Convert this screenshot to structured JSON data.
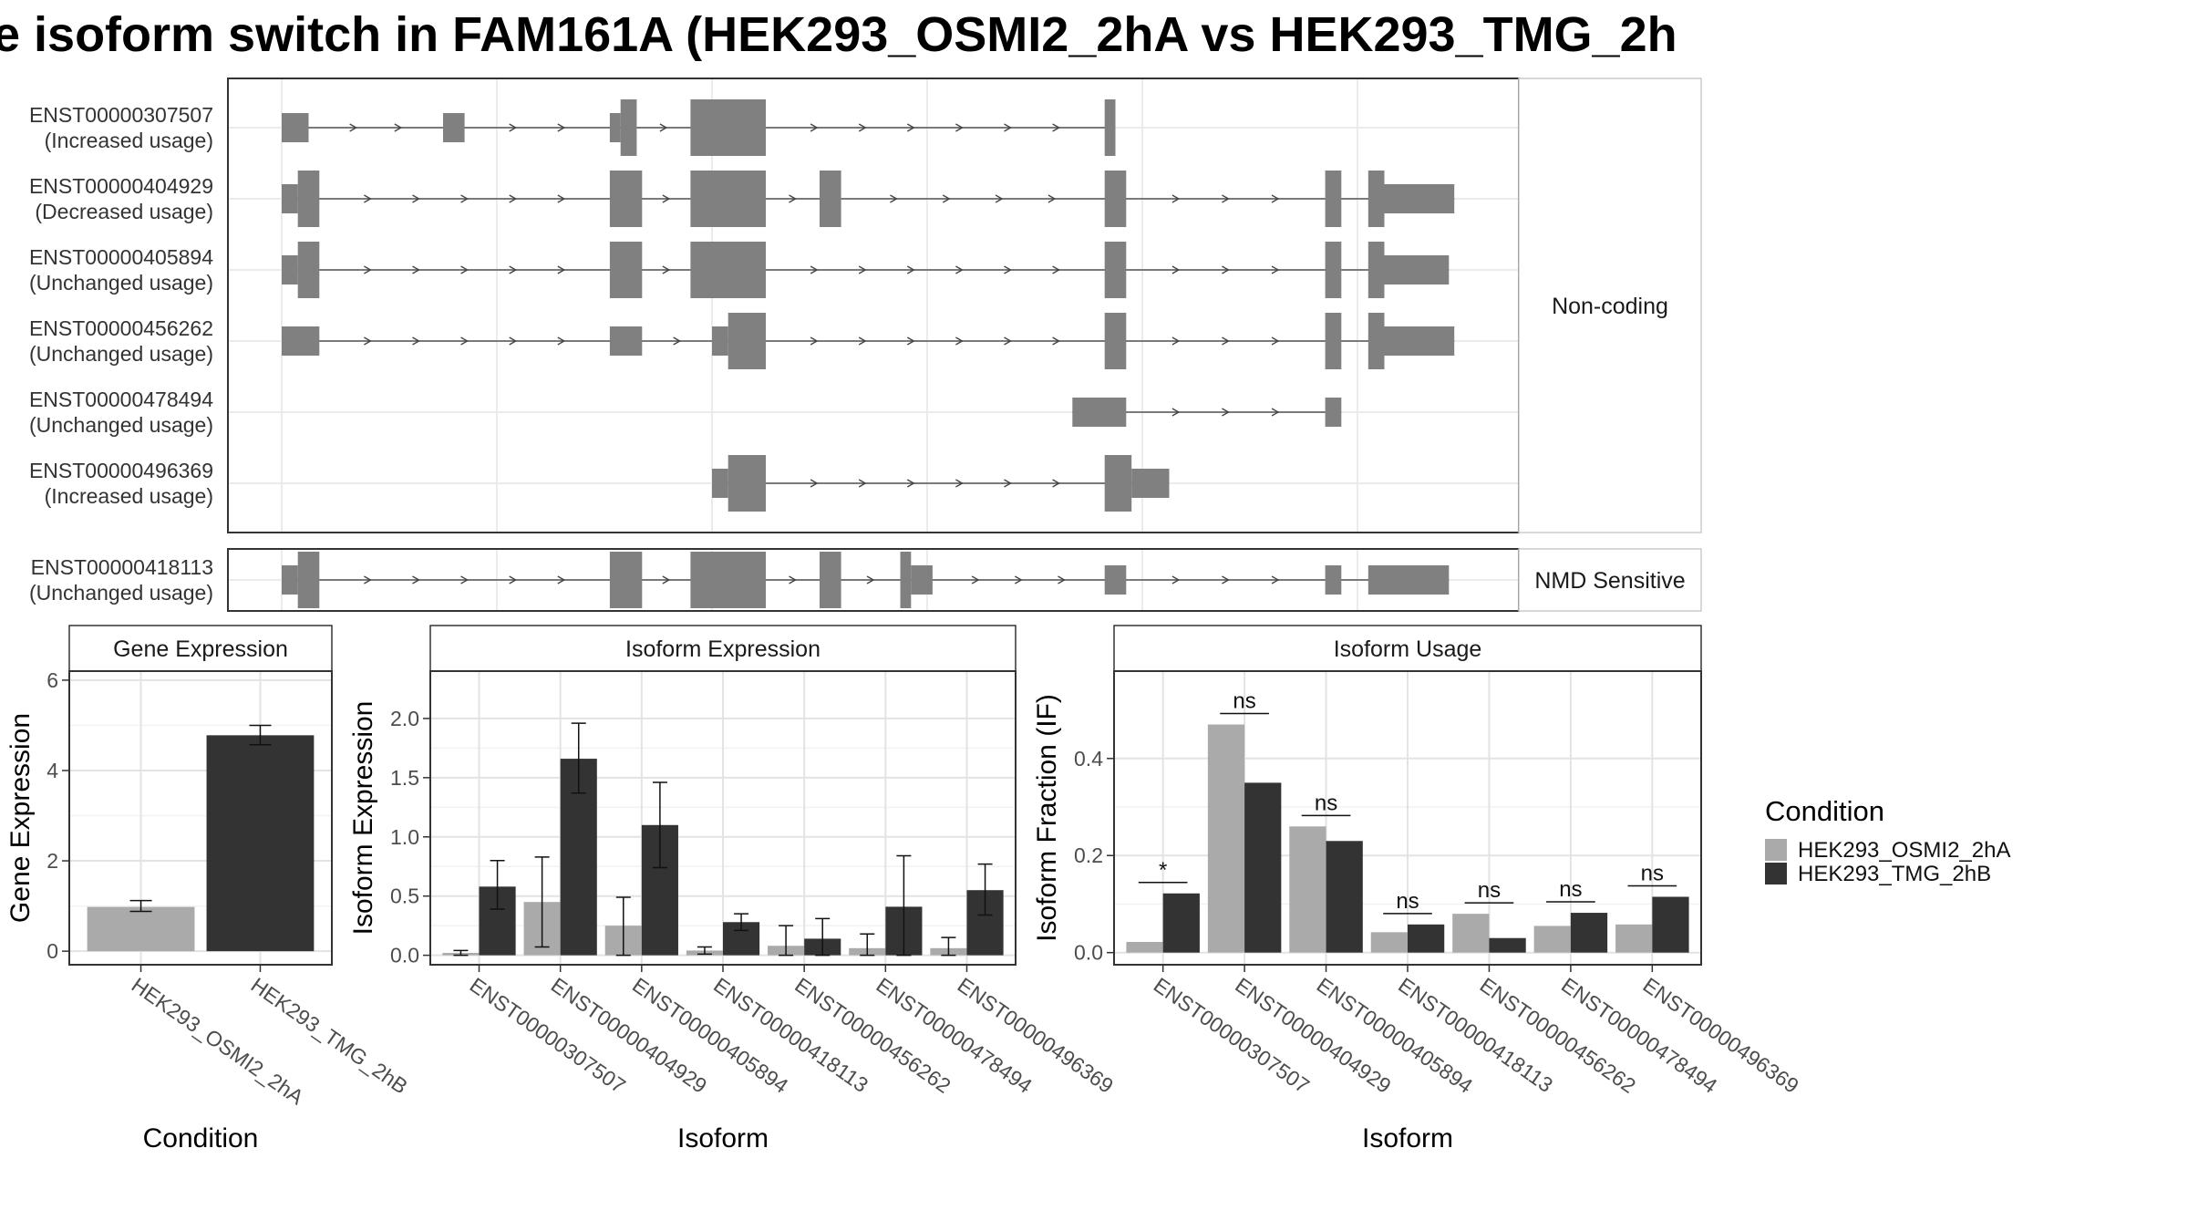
{
  "title": "e isoform switch in FAM161A (HEK293_OSMI2_2hA vs HEK293_TMG_2h",
  "chart_data": [
    {
      "type": "gene-structure",
      "facets": [
        {
          "label": "Non-coding",
          "isoforms": [
            {
              "id": "ENST00000307507",
              "usage": "(Increased usage)",
              "exons": [
                [
                  1.0,
                  1.5,
                  "n"
                ],
                [
                  4.0,
                  4.4,
                  "n"
                ],
                [
                  7.1,
                  7.3,
                  "n"
                ],
                [
                  7.3,
                  7.6,
                  "w"
                ],
                [
                  8.6,
                  10.0,
                  "w"
                ],
                [
                  16.3,
                  16.5,
                  "w"
                ]
              ]
            },
            {
              "id": "ENST00000404929",
              "usage": "(Decreased usage)",
              "exons": [
                [
                  1.0,
                  1.3,
                  "n"
                ],
                [
                  1.3,
                  1.7,
                  "w"
                ],
                [
                  7.1,
                  7.7,
                  "w"
                ],
                [
                  8.6,
                  10.0,
                  "w"
                ],
                [
                  11.0,
                  11.4,
                  "w"
                ],
                [
                  16.3,
                  16.7,
                  "w"
                ],
                [
                  20.4,
                  20.7,
                  "w"
                ],
                [
                  21.2,
                  21.5,
                  "w"
                ],
                [
                  21.5,
                  22.8,
                  "n"
                ]
              ]
            },
            {
              "id": "ENST00000405894",
              "usage": "(Unchanged usage)",
              "exons": [
                [
                  1.0,
                  1.3,
                  "n"
                ],
                [
                  1.3,
                  1.7,
                  "w"
                ],
                [
                  7.1,
                  7.7,
                  "w"
                ],
                [
                  8.6,
                  10.0,
                  "w"
                ],
                [
                  16.3,
                  16.7,
                  "w"
                ],
                [
                  20.4,
                  20.7,
                  "w"
                ],
                [
                  21.2,
                  21.5,
                  "w"
                ],
                [
                  21.5,
                  22.7,
                  "n"
                ]
              ]
            },
            {
              "id": "ENST00000456262",
              "usage": "(Unchanged usage)",
              "exons": [
                [
                  1.0,
                  1.7,
                  "n"
                ],
                [
                  7.1,
                  7.7,
                  "n"
                ],
                [
                  9.0,
                  9.3,
                  "n"
                ],
                [
                  9.3,
                  10.0,
                  "w"
                ],
                [
                  16.3,
                  16.7,
                  "w"
                ],
                [
                  20.4,
                  20.7,
                  "w"
                ],
                [
                  21.2,
                  21.5,
                  "w"
                ],
                [
                  21.5,
                  22.8,
                  "n"
                ]
              ]
            },
            {
              "id": "ENST00000478494",
              "usage": "(Unchanged usage)",
              "exons": [
                [
                  15.7,
                  16.7,
                  "n"
                ],
                [
                  20.4,
                  20.7,
                  "n"
                ]
              ]
            },
            {
              "id": "ENST00000496369",
              "usage": "(Increased usage)",
              "exons": [
                [
                  9.0,
                  9.3,
                  "n"
                ],
                [
                  9.3,
                  10.0,
                  "w"
                ],
                [
                  16.3,
                  16.8,
                  "w"
                ],
                [
                  16.8,
                  17.5,
                  "n"
                ]
              ]
            }
          ]
        },
        {
          "label": "NMD Sensitive",
          "isoforms": [
            {
              "id": "ENST00000418113",
              "usage": "(Unchanged usage)",
              "exons": [
                [
                  1.0,
                  1.3,
                  "n"
                ],
                [
                  1.3,
                  1.7,
                  "w"
                ],
                [
                  7.1,
                  7.7,
                  "w"
                ],
                [
                  8.6,
                  10.0,
                  "w"
                ],
                [
                  11.0,
                  11.4,
                  "w"
                ],
                [
                  12.5,
                  12.7,
                  "w"
                ],
                [
                  12.7,
                  13.1,
                  "n"
                ],
                [
                  16.3,
                  16.7,
                  "n"
                ],
                [
                  20.4,
                  20.7,
                  "n"
                ],
                [
                  21.2,
                  22.7,
                  "n"
                ]
              ]
            }
          ]
        }
      ]
    },
    {
      "type": "bar",
      "title": "Gene Expression",
      "xlabel": "Condition",
      "ylabel": "Gene Expression",
      "ylim": [
        -0.3,
        6.2
      ],
      "yticks": [
        0,
        2,
        4,
        6
      ],
      "categories": [
        "HEK293_OSMI2_2hA",
        "HEK293_TMG_2hB"
      ],
      "values": [
        0.98,
        4.78
      ],
      "error_low": [
        0.88,
        4.57
      ],
      "error_high": [
        1.12,
        5.0
      ],
      "colors": [
        "#aaaaaa",
        "#333333"
      ]
    },
    {
      "type": "bar",
      "title": "Isoform Expression",
      "xlabel": "Isoform",
      "ylabel": "Isoform Expression",
      "ylim": [
        -0.08,
        2.4
      ],
      "yticks": [
        0.0,
        0.5,
        1.0,
        1.5,
        2.0
      ],
      "categories": [
        "ENST00000307507",
        "ENST00000404929",
        "ENST00000405894",
        "ENST00000418113",
        "ENST00000456262",
        "ENST00000478494",
        "ENST00000496369"
      ],
      "series": [
        {
          "name": "HEK293_OSMI2_2hA",
          "values": [
            0.02,
            0.45,
            0.25,
            0.04,
            0.08,
            0.06,
            0.06
          ],
          "error_low": [
            0.0,
            0.07,
            0.0,
            0.01,
            0.0,
            0.0,
            0.0
          ],
          "error_high": [
            0.04,
            0.83,
            0.49,
            0.07,
            0.25,
            0.18,
            0.15
          ]
        },
        {
          "name": "HEK293_TMG_2hB",
          "values": [
            0.58,
            1.66,
            1.1,
            0.28,
            0.14,
            0.41,
            0.55
          ],
          "error_low": [
            0.39,
            1.37,
            0.74,
            0.21,
            0.0,
            0.0,
            0.34
          ],
          "error_high": [
            0.8,
            1.96,
            1.46,
            0.35,
            0.31,
            0.84,
            0.77
          ]
        }
      ]
    },
    {
      "type": "bar",
      "title": "Isoform Usage",
      "xlabel": "Isoform",
      "ylabel": "Isoform Fraction (IF)",
      "ylim": [
        -0.025,
        0.58
      ],
      "yticks": [
        0.0,
        0.2,
        0.4
      ],
      "categories": [
        "ENST00000307507",
        "ENST00000404929",
        "ENST00000405894",
        "ENST00000418113",
        "ENST00000456262",
        "ENST00000478494",
        "ENST00000496369"
      ],
      "series": [
        {
          "name": "HEK293_OSMI2_2hA",
          "values": [
            0.022,
            0.47,
            0.26,
            0.042,
            0.08,
            0.055,
            0.058
          ]
        },
        {
          "name": "HEK293_TMG_2hB",
          "values": [
            0.122,
            0.35,
            0.23,
            0.058,
            0.03,
            0.082,
            0.115
          ]
        }
      ],
      "significance": [
        "*",
        "ns",
        "ns",
        "ns",
        "ns",
        "ns",
        "ns"
      ]
    }
  ],
  "legend": {
    "title": "Condition",
    "items": [
      {
        "label": "HEK293_OSMI2_2hA",
        "color": "#aaaaaa"
      },
      {
        "label": "HEK293_TMG_2hB",
        "color": "#333333"
      }
    ]
  }
}
